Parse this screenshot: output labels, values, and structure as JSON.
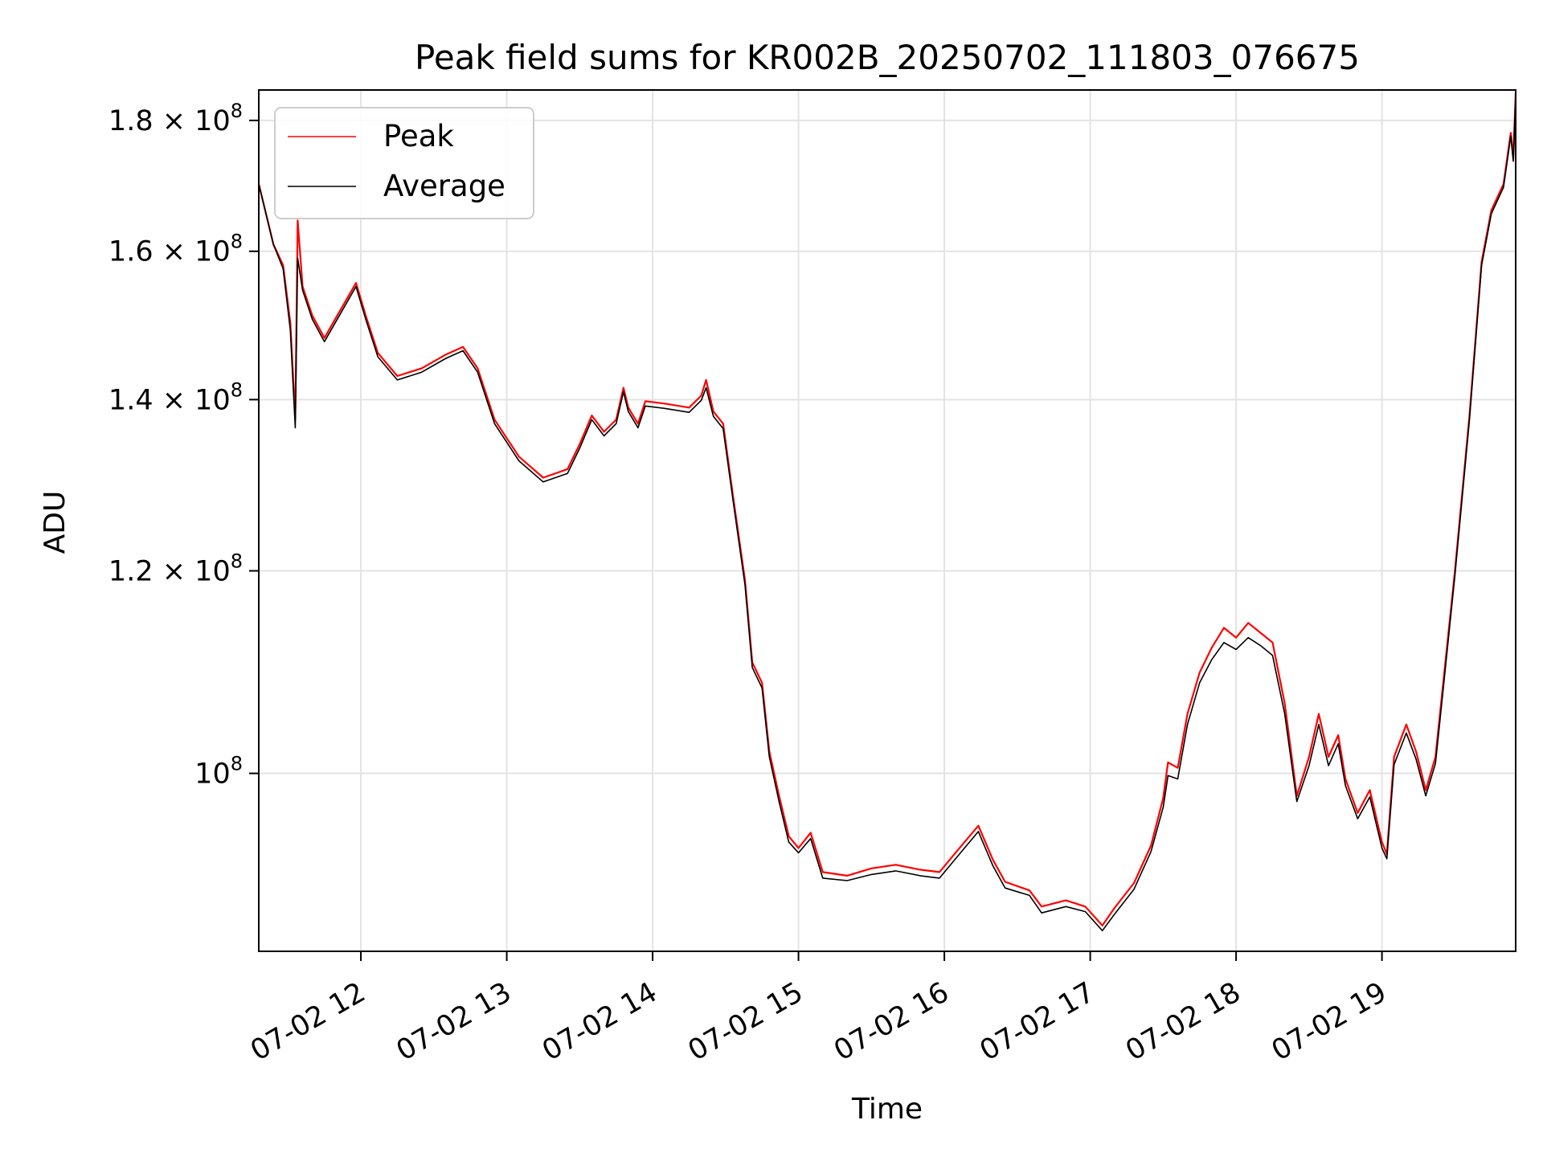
{
  "chart_data": {
    "type": "line",
    "title": "Peak field sums for KR002B_20250702_111803_076675",
    "xlabel": "Time",
    "ylabel": "ADU",
    "y_scale": "log",
    "grid": true,
    "legend_placement": "upper-left",
    "x_ticks": [
      "07-02 12",
      "07-02 13",
      "07-02 14",
      "07-02 15",
      "07-02 16",
      "07-02 17",
      "07-02 18",
      "07-02 19"
    ],
    "y_ticks": [
      {
        "value": 100000000,
        "mantissa": "",
        "base": "10",
        "exp": "8"
      },
      {
        "value": 120000000,
        "mantissa": "1.2 × ",
        "base": "10",
        "exp": "8"
      },
      {
        "value": 140000000,
        "mantissa": "1.4 × ",
        "base": "10",
        "exp": "8"
      },
      {
        "value": 160000000,
        "mantissa": "1.6 × ",
        "base": "10",
        "exp": "8"
      },
      {
        "value": 180000000,
        "mantissa": "1.8 × ",
        "base": "10",
        "exp": "8"
      }
    ],
    "xlim": [
      "2025-07-02 11:18",
      "2025-07-02 19:55"
    ],
    "ylim": [
      85200000,
      185000000
    ],
    "series": [
      {
        "name": "Peak",
        "color": "#ff0000",
        "points": [
          [
            "2025-07-02 11:18",
            170000000
          ],
          [
            "2025-07-02 11:24",
            161000000
          ],
          [
            "2025-07-02 11:28",
            158000000
          ],
          [
            "2025-07-02 11:31",
            150000000
          ],
          [
            "2025-07-02 11:33",
            137500000
          ],
          [
            "2025-07-02 11:34",
            164500000
          ],
          [
            "2025-07-02 11:36",
            155000000
          ],
          [
            "2025-07-02 11:40",
            151000000
          ],
          [
            "2025-07-02 11:45",
            148000000
          ],
          [
            "2025-07-02 11:52",
            152000000
          ],
          [
            "2025-07-02 11:58",
            155500000
          ],
          [
            "2025-07-02 12:02",
            151000000
          ],
          [
            "2025-07-02 12:07",
            146000000
          ],
          [
            "2025-07-02 12:15",
            143000000
          ],
          [
            "2025-07-02 12:25",
            144000000
          ],
          [
            "2025-07-02 12:35",
            145800000
          ],
          [
            "2025-07-02 12:42",
            146800000
          ],
          [
            "2025-07-02 12:48",
            144000000
          ],
          [
            "2025-07-02 12:55",
            137500000
          ],
          [
            "2025-07-02 13:05",
            133000000
          ],
          [
            "2025-07-02 13:15",
            130500000
          ],
          [
            "2025-07-02 13:25",
            131500000
          ],
          [
            "2025-07-02 13:30",
            134500000
          ],
          [
            "2025-07-02 13:35",
            138000000
          ],
          [
            "2025-07-02 13:40",
            136000000
          ],
          [
            "2025-07-02 13:45",
            137500000
          ],
          [
            "2025-07-02 13:48",
            141500000
          ],
          [
            "2025-07-02 13:50",
            139000000
          ],
          [
            "2025-07-02 13:54",
            137000000
          ],
          [
            "2025-07-02 13:57",
            139800000
          ],
          [
            "2025-07-02 14:05",
            139500000
          ],
          [
            "2025-07-02 14:15",
            139000000
          ],
          [
            "2025-07-02 14:20",
            140500000
          ],
          [
            "2025-07-02 14:22",
            142500000
          ],
          [
            "2025-07-02 14:25",
            138500000
          ],
          [
            "2025-07-02 14:29",
            137000000
          ],
          [
            "2025-07-02 14:33",
            128500000
          ],
          [
            "2025-07-02 14:38",
            119000000
          ],
          [
            "2025-07-02 14:41",
            110500000
          ],
          [
            "2025-07-02 14:45",
            108500000
          ],
          [
            "2025-07-02 14:48",
            102000000
          ],
          [
            "2025-07-02 14:52",
            98000000
          ],
          [
            "2025-07-02 14:56",
            94500000
          ],
          [
            "2025-07-02 15:00",
            93500000
          ],
          [
            "2025-07-02 15:05",
            94800000
          ],
          [
            "2025-07-02 15:10",
            91500000
          ],
          [
            "2025-07-02 15:20",
            91200000
          ],
          [
            "2025-07-02 15:30",
            91800000
          ],
          [
            "2025-07-02 15:40",
            92100000
          ],
          [
            "2025-07-02 15:50",
            91700000
          ],
          [
            "2025-07-02 15:58",
            91500000
          ],
          [
            "2025-07-02 16:05",
            93200000
          ],
          [
            "2025-07-02 16:14",
            95400000
          ],
          [
            "2025-07-02 16:20",
            92500000
          ],
          [
            "2025-07-02 16:25",
            90700000
          ],
          [
            "2025-07-02 16:35",
            90000000
          ],
          [
            "2025-07-02 16:40",
            88700000
          ],
          [
            "2025-07-02 16:50",
            89200000
          ],
          [
            "2025-07-02 16:58",
            88700000
          ],
          [
            "2025-07-02 17:05",
            87200000
          ],
          [
            "2025-07-02 17:10",
            88600000
          ],
          [
            "2025-07-02 17:18",
            90600000
          ],
          [
            "2025-07-02 17:25",
            93700000
          ],
          [
            "2025-07-02 17:30",
            97800000
          ],
          [
            "2025-07-02 17:32",
            101000000
          ],
          [
            "2025-07-02 17:36",
            100500000
          ],
          [
            "2025-07-02 17:40",
            105500000
          ],
          [
            "2025-07-02 17:45",
            109500000
          ],
          [
            "2025-07-02 17:50",
            112000000
          ],
          [
            "2025-07-02 17:55",
            114000000
          ],
          [
            "2025-07-02 18:00",
            113000000
          ],
          [
            "2025-07-02 18:05",
            114500000
          ],
          [
            "2025-07-02 18:10",
            113500000
          ],
          [
            "2025-07-02 18:15",
            112500000
          ],
          [
            "2025-07-02 18:20",
            106500000
          ],
          [
            "2025-07-02 18:25",
            98000000
          ],
          [
            "2025-07-02 18:30",
            101500000
          ],
          [
            "2025-07-02 18:34",
            105500000
          ],
          [
            "2025-07-02 18:38",
            101500000
          ],
          [
            "2025-07-02 18:42",
            103500000
          ],
          [
            "2025-07-02 18:45",
            99500000
          ],
          [
            "2025-07-02 18:50",
            96500000
          ],
          [
            "2025-07-02 18:55",
            98500000
          ],
          [
            "2025-07-02 19:00",
            94000000
          ],
          [
            "2025-07-02 19:02",
            93000000
          ],
          [
            "2025-07-02 19:05",
            101500000
          ],
          [
            "2025-07-02 19:10",
            104500000
          ],
          [
            "2025-07-02 19:14",
            102000000
          ],
          [
            "2025-07-02 19:18",
            98500000
          ],
          [
            "2025-07-02 19:22",
            101500000
          ],
          [
            "2025-07-02 19:25",
            108000000
          ],
          [
            "2025-07-02 19:30",
            120000000
          ],
          [
            "2025-07-02 19:36",
            138000000
          ],
          [
            "2025-07-02 19:41",
            158500000
          ],
          [
            "2025-07-02 19:45",
            166000000
          ],
          [
            "2025-07-02 19:50",
            170000000
          ],
          [
            "2025-07-02 19:53",
            178000000
          ],
          [
            "2025-07-02 19:54",
            174000000
          ],
          [
            "2025-07-02 19:55",
            184500000
          ]
        ]
      },
      {
        "name": "Average",
        "color": "#000000",
        "points": [
          [
            "2025-07-02 11:18",
            170000000
          ],
          [
            "2025-07-02 11:24",
            161000000
          ],
          [
            "2025-07-02 11:28",
            157500000
          ],
          [
            "2025-07-02 11:31",
            149000000
          ],
          [
            "2025-07-02 11:33",
            136500000
          ],
          [
            "2025-07-02 11:34",
            159000000
          ],
          [
            "2025-07-02 11:36",
            154500000
          ],
          [
            "2025-07-02 11:40",
            150500000
          ],
          [
            "2025-07-02 11:45",
            147500000
          ],
          [
            "2025-07-02 11:52",
            151500000
          ],
          [
            "2025-07-02 11:58",
            155000000
          ],
          [
            "2025-07-02 12:02",
            150500000
          ],
          [
            "2025-07-02 12:07",
            145500000
          ],
          [
            "2025-07-02 12:15",
            142500000
          ],
          [
            "2025-07-02 12:25",
            143500000
          ],
          [
            "2025-07-02 12:35",
            145300000
          ],
          [
            "2025-07-02 12:42",
            146300000
          ],
          [
            "2025-07-02 12:48",
            143500000
          ],
          [
            "2025-07-02 12:55",
            137000000
          ],
          [
            "2025-07-02 13:05",
            132500000
          ],
          [
            "2025-07-02 13:15",
            130000000
          ],
          [
            "2025-07-02 13:25",
            131000000
          ],
          [
            "2025-07-02 13:30",
            134000000
          ],
          [
            "2025-07-02 13:35",
            137500000
          ],
          [
            "2025-07-02 13:40",
            135500000
          ],
          [
            "2025-07-02 13:45",
            137000000
          ],
          [
            "2025-07-02 13:48",
            141000000
          ],
          [
            "2025-07-02 13:50",
            138500000
          ],
          [
            "2025-07-02 13:54",
            136500000
          ],
          [
            "2025-07-02 13:57",
            139200000
          ],
          [
            "2025-07-02 14:05",
            138900000
          ],
          [
            "2025-07-02 14:15",
            138400000
          ],
          [
            "2025-07-02 14:20",
            139900000
          ],
          [
            "2025-07-02 14:22",
            141500000
          ],
          [
            "2025-07-02 14:25",
            137900000
          ],
          [
            "2025-07-02 14:29",
            136400000
          ],
          [
            "2025-07-02 14:33",
            128000000
          ],
          [
            "2025-07-02 14:38",
            118500000
          ],
          [
            "2025-07-02 14:41",
            110000000
          ],
          [
            "2025-07-02 14:45",
            108000000
          ],
          [
            "2025-07-02 14:48",
            101500000
          ],
          [
            "2025-07-02 14:52",
            97500000
          ],
          [
            "2025-07-02 14:56",
            94000000
          ],
          [
            "2025-07-02 15:00",
            93100000
          ],
          [
            "2025-07-02 15:05",
            94300000
          ],
          [
            "2025-07-02 15:10",
            91000000
          ],
          [
            "2025-07-02 15:20",
            90800000
          ],
          [
            "2025-07-02 15:30",
            91300000
          ],
          [
            "2025-07-02 15:40",
            91600000
          ],
          [
            "2025-07-02 15:50",
            91200000
          ],
          [
            "2025-07-02 15:58",
            91000000
          ],
          [
            "2025-07-02 16:05",
            92700000
          ],
          [
            "2025-07-02 16:14",
            94900000
          ],
          [
            "2025-07-02 16:20",
            92000000
          ],
          [
            "2025-07-02 16:25",
            90200000
          ],
          [
            "2025-07-02 16:35",
            89600000
          ],
          [
            "2025-07-02 16:40",
            88200000
          ],
          [
            "2025-07-02 16:50",
            88700000
          ],
          [
            "2025-07-02 16:58",
            88300000
          ],
          [
            "2025-07-02 17:05",
            86800000
          ],
          [
            "2025-07-02 17:10",
            88100000
          ],
          [
            "2025-07-02 17:18",
            90100000
          ],
          [
            "2025-07-02 17:25",
            93200000
          ],
          [
            "2025-07-02 17:30",
            97000000
          ],
          [
            "2025-07-02 17:32",
            99800000
          ],
          [
            "2025-07-02 17:36",
            99500000
          ],
          [
            "2025-07-02 17:40",
            104500000
          ],
          [
            "2025-07-02 17:45",
            108500000
          ],
          [
            "2025-07-02 17:50",
            110800000
          ],
          [
            "2025-07-02 17:55",
            112500000
          ],
          [
            "2025-07-02 18:00",
            111800000
          ],
          [
            "2025-07-02 18:05",
            113000000
          ],
          [
            "2025-07-02 18:10",
            112200000
          ],
          [
            "2025-07-02 18:15",
            111200000
          ],
          [
            "2025-07-02 18:20",
            105500000
          ],
          [
            "2025-07-02 18:25",
            97500000
          ],
          [
            "2025-07-02 18:30",
            100700000
          ],
          [
            "2025-07-02 18:34",
            104500000
          ],
          [
            "2025-07-02 18:38",
            100700000
          ],
          [
            "2025-07-02 18:42",
            102700000
          ],
          [
            "2025-07-02 18:45",
            98900000
          ],
          [
            "2025-07-02 18:50",
            96000000
          ],
          [
            "2025-07-02 18:55",
            97900000
          ],
          [
            "2025-07-02 19:00",
            93500000
          ],
          [
            "2025-07-02 19:02",
            92600000
          ],
          [
            "2025-07-02 19:05",
            100800000
          ],
          [
            "2025-07-02 19:10",
            103700000
          ],
          [
            "2025-07-02 19:14",
            101300000
          ],
          [
            "2025-07-02 19:18",
            98000000
          ],
          [
            "2025-07-02 19:22",
            100900000
          ],
          [
            "2025-07-02 19:25",
            107400000
          ],
          [
            "2025-07-02 19:30",
            119500000
          ],
          [
            "2025-07-02 19:36",
            137500000
          ],
          [
            "2025-07-02 19:41",
            158000000
          ],
          [
            "2025-07-02 19:45",
            165500000
          ],
          [
            "2025-07-02 19:50",
            169500000
          ],
          [
            "2025-07-02 19:53",
            177500000
          ],
          [
            "2025-07-02 19:54",
            173500000
          ],
          [
            "2025-07-02 19:55",
            184000000
          ]
        ]
      }
    ]
  }
}
